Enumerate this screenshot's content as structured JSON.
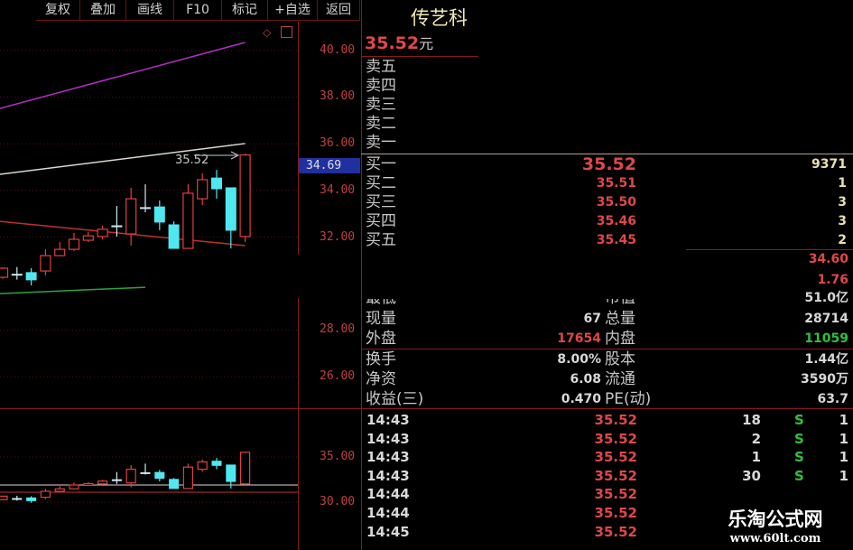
{
  "toolbar": {
    "buttons": [
      "复权",
      "叠加",
      "画线",
      "F10",
      "标记",
      "+自选",
      "返回"
    ]
  },
  "chart_icons": [
    "diamond-icon",
    "square-icon"
  ],
  "price_axis": {
    "labels": [
      "40.00",
      "38.00",
      "36.00",
      "34.00",
      "32.00",
      "28.00",
      "26.00"
    ],
    "crosshair_label": "34.69",
    "volume_labels": [
      "35.00",
      "30.00"
    ]
  },
  "chart_data": {
    "type": "candlestick",
    "last_price_annotation": "35.52",
    "ylim": [
      26,
      40
    ],
    "candles": [
      {
        "o": 30.27,
        "c": 30.66,
        "h": 30.7,
        "l": 30.2
      },
      {
        "o": 30.4,
        "c": 30.4,
        "h": 30.71,
        "l": 30.17
      },
      {
        "o": 30.47,
        "c": 30.16,
        "h": 30.66,
        "l": 29.92
      },
      {
        "o": 30.54,
        "c": 31.2,
        "h": 31.47,
        "l": 30.35
      },
      {
        "o": 31.2,
        "c": 31.47,
        "h": 31.78,
        "l": 31.2
      },
      {
        "o": 31.47,
        "c": 31.9,
        "h": 32.17,
        "l": 31.4
      },
      {
        "o": 31.86,
        "c": 32.05,
        "h": 32.21,
        "l": 31.78
      },
      {
        "o": 32.02,
        "c": 32.33,
        "h": 32.48,
        "l": 31.9
      },
      {
        "o": 32.48,
        "c": 32.48,
        "h": 33.33,
        "l": 32.02
      },
      {
        "o": 32.13,
        "c": 33.64,
        "h": 34.11,
        "l": 31.63
      },
      {
        "o": 33.26,
        "c": 33.26,
        "h": 34.26,
        "l": 33.06
      },
      {
        "o": 33.29,
        "c": 32.64,
        "h": 33.57,
        "l": 32.29
      },
      {
        "o": 32.52,
        "c": 31.51,
        "h": 32.67,
        "l": 31.51
      },
      {
        "o": 31.51,
        "c": 33.88,
        "h": 34.26,
        "l": 31.51
      },
      {
        "o": 33.64,
        "c": 34.46,
        "h": 34.73,
        "l": 33.37
      },
      {
        "o": 34.53,
        "c": 34.07,
        "h": 34.88,
        "l": 33.64
      },
      {
        "o": 34.11,
        "c": 32.29,
        "h": 34.11,
        "l": 31.51
      },
      {
        "o": 32.02,
        "c": 35.52,
        "h": 35.58,
        "l": 31.78
      }
    ],
    "moving_averages": [
      {
        "color": "#b030c0",
        "from": 37.52,
        "to": 40.35,
        "start_index": 0,
        "end_index": 17
      },
      {
        "color": "#d8d8d0",
        "from": 34.69,
        "to": 36.01,
        "start_index": 0,
        "end_index": 17
      },
      {
        "color": "#c03030",
        "from": 32.67,
        "to": 31.63,
        "start_index": 0,
        "end_index": 17
      },
      {
        "color": "#30a040",
        "from": 29.57,
        "to": 29.84,
        "start_index": 0,
        "end_index": 10
      }
    ],
    "colors": {
      "up": "#e04040",
      "down": "#50e8f0",
      "flat": "#d0e8f0"
    }
  },
  "quote": {
    "name": "传艺科",
    "price": "35.52",
    "unit": "元",
    "asks": [
      {
        "label": "卖五"
      },
      {
        "label": "卖四"
      },
      {
        "label": "卖三"
      },
      {
        "label": "卖二"
      },
      {
        "label": "卖一"
      }
    ],
    "bids": [
      {
        "label": "买一",
        "price": "35.52",
        "volume": "9371"
      },
      {
        "label": "买二",
        "price": "35.51",
        "volume": "1"
      },
      {
        "label": "买三",
        "price": "35.50",
        "volume": "3"
      },
      {
        "label": "买四",
        "price": "35.46",
        "volume": "3"
      },
      {
        "label": "买五",
        "price": "35.45",
        "volume": "2"
      }
    ],
    "stats_extra": [
      "34.60",
      "1.76"
    ],
    "stats": [
      {
        "l1": "最低",
        "v1": "",
        "l2": "市值",
        "v2": "51.0亿"
      },
      {
        "l1": "现量",
        "v1": "67",
        "l2": "总量",
        "v2": "28714"
      },
      {
        "l1": "外盘",
        "v1": "17654",
        "l2": "内盘",
        "v2": "11059"
      },
      {
        "l1": "换手",
        "v1": "8.00%",
        "l2": "股本",
        "v2": "1.44亿"
      },
      {
        "l1": "净资",
        "v1": "6.08",
        "l2": "流通",
        "v2": "3590万"
      },
      {
        "l1": "收益(三)",
        "v1": "0.470",
        "l2": "PE(动)",
        "v2": "63.7"
      }
    ]
  },
  "ticks": [
    {
      "time": "14:43",
      "price": "35.52",
      "vol": "18",
      "side": "S",
      "n": "1"
    },
    {
      "time": "14:43",
      "price": "35.52",
      "vol": "2",
      "side": "S",
      "n": "1"
    },
    {
      "time": "14:43",
      "price": "35.52",
      "vol": "1",
      "side": "S",
      "n": "1"
    },
    {
      "time": "14:43",
      "price": "35.52",
      "vol": "30",
      "side": "S",
      "n": "1"
    },
    {
      "time": "14:44",
      "price": "35.52"
    },
    {
      "time": "14:44",
      "price": "35.52"
    },
    {
      "time": "14:45",
      "price": "35.52"
    }
  ],
  "watermark": {
    "title": "乐淘公式网",
    "url": "www.60lt.com"
  }
}
